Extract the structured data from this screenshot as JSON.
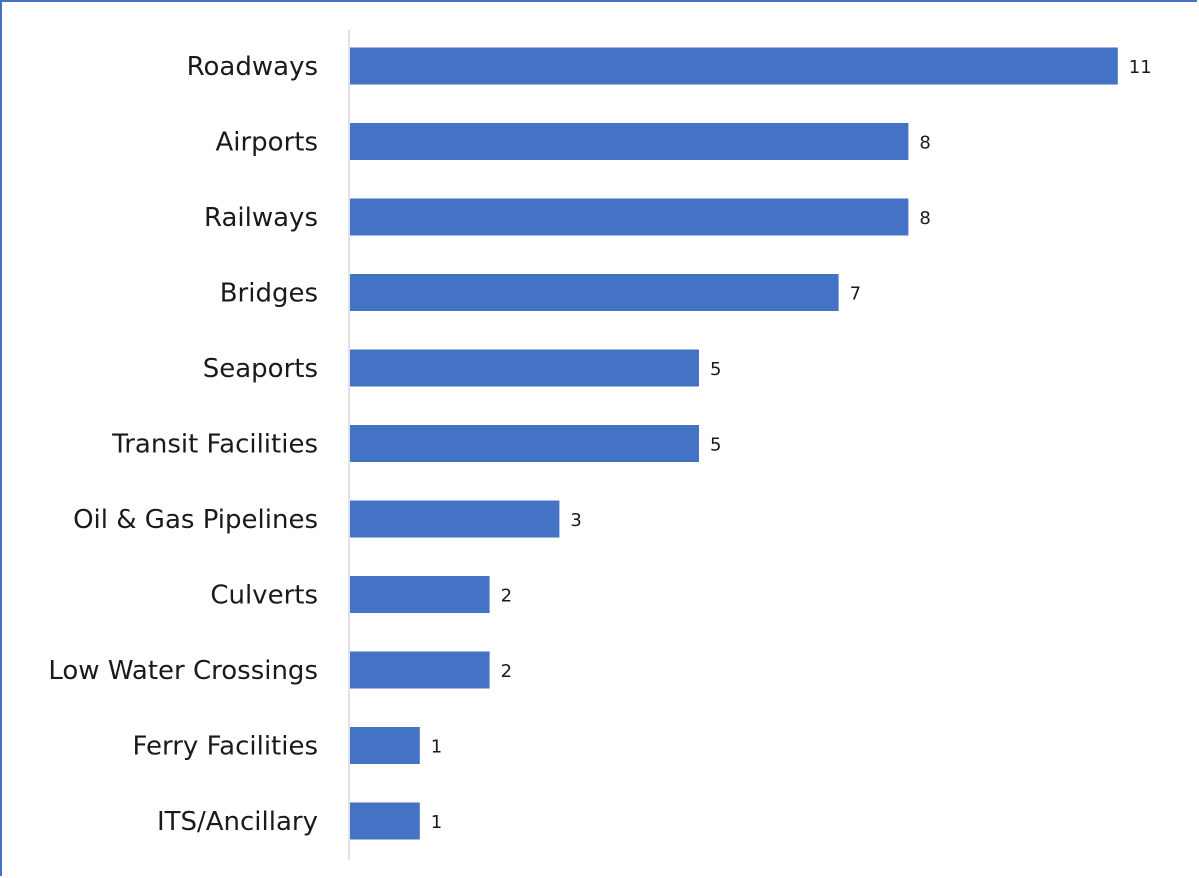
{
  "chart_data": {
    "type": "bar",
    "orientation": "horizontal",
    "title": "",
    "xlabel": "",
    "ylabel": "",
    "categories": [
      "Roadways",
      "Airports",
      "Railways",
      "Bridges",
      "Seaports",
      "Transit Facilities",
      "Oil & Gas Pipelines",
      "Culverts",
      "Low Water Crossings",
      "Ferry Facilities",
      "ITS/Ancillary"
    ],
    "values": [
      11,
      8,
      8,
      7,
      5,
      5,
      3,
      2,
      2,
      1,
      1
    ],
    "xlim": [
      0,
      11
    ],
    "grid": false,
    "legend": "none",
    "data_labels": true,
    "bar_color": "#4472c4",
    "axis_color": "#d9d9d9",
    "frame_color": "#4472c4"
  }
}
